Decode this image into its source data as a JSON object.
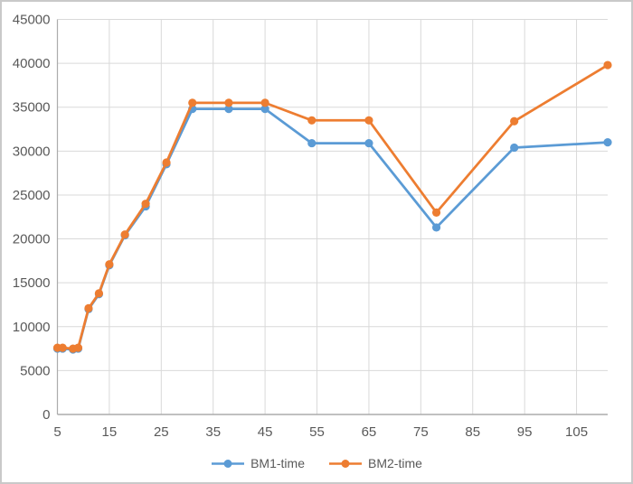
{
  "chart_data": {
    "type": "line",
    "title": "",
    "xlabel": "",
    "ylabel": "",
    "x": [
      5,
      6,
      8,
      9,
      11,
      13,
      15,
      18,
      22,
      26,
      31,
      38,
      45,
      54,
      65,
      78,
      93,
      111
    ],
    "series": [
      {
        "name": "BM1-time",
        "color": "#5B9BD5",
        "values": [
          7500,
          7500,
          7400,
          7500,
          12000,
          13700,
          17000,
          20400,
          23700,
          28500,
          34800,
          34800,
          34800,
          30900,
          30900,
          21300,
          30400,
          31000
        ]
      },
      {
        "name": "BM2-time",
        "color": "#ED7D31",
        "values": [
          7600,
          7600,
          7500,
          7600,
          12100,
          13800,
          17100,
          20500,
          24000,
          28700,
          35500,
          35500,
          35500,
          33500,
          33500,
          23000,
          33400,
          39800
        ]
      }
    ],
    "xlim": [
      5,
      111
    ],
    "ylim": [
      0,
      45000
    ],
    "y_tick_step": 5000,
    "y_tick_labels": [
      "0",
      "5000",
      "10000",
      "15000",
      "20000",
      "25000",
      "30000",
      "35000",
      "40000",
      "45000"
    ],
    "x_ticks": [
      5,
      15,
      25,
      35,
      45,
      55,
      65,
      75,
      85,
      95,
      105
    ],
    "grid": true,
    "legend_position": "bottom",
    "colors": {
      "grid_color": "#D9D9D9",
      "axis_color": "#ACACAC",
      "tick_label_color": "#595959",
      "background": "#FFFFFF",
      "frame_border": "#C9C9C9"
    }
  }
}
